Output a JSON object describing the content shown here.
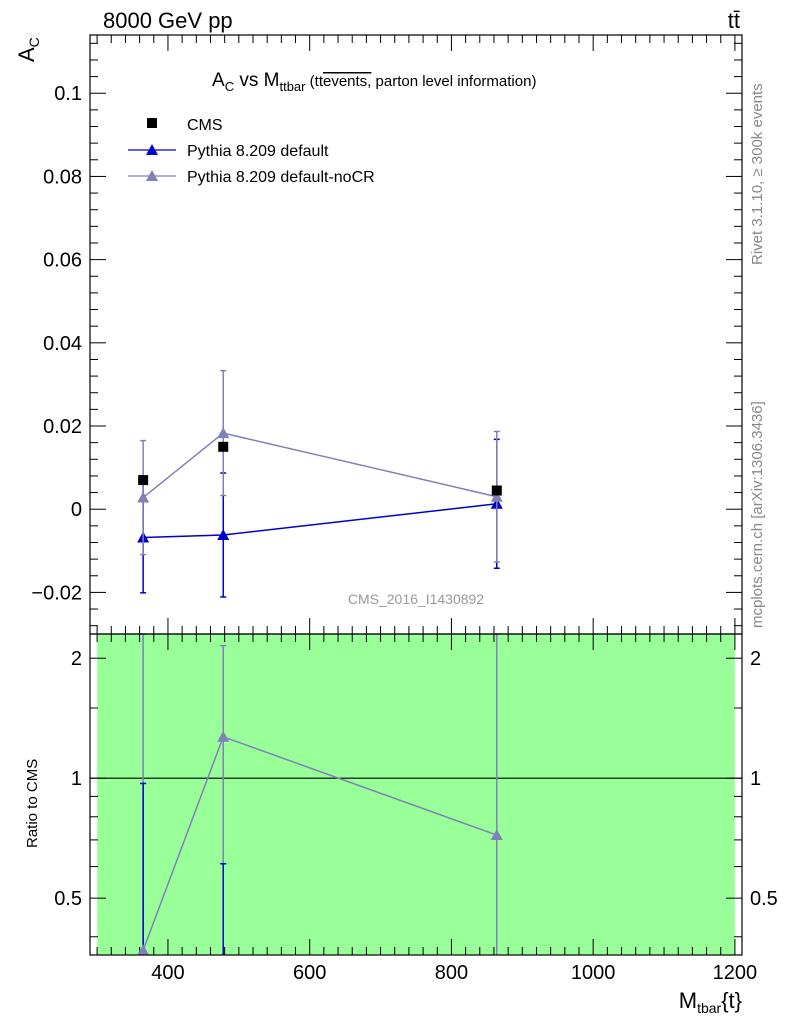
{
  "header": {
    "left_label": "8000 GeV pp",
    "right_label": "tt̄"
  },
  "side_text": {
    "rivet": "Rivet 3.1.10, ≥ 300k events",
    "url": "mcplots.cern.ch [arXiv:1306.3436]"
  },
  "watermark": "CMS_2016_I1430892",
  "title": {
    "main": "A",
    "main_sub": "C",
    "vs": " vs M",
    "vs_sub": "ttbar",
    "paren_open": " (tt",
    "overline": "events,",
    "paren_rest": " parton level information)"
  },
  "ylabel_main": {
    "main": "A",
    "sub": "C"
  },
  "ylabel_ratio": "Ratio to CMS",
  "xlabel": {
    "main": "M",
    "sub": "tbar",
    "tail": "{t}"
  },
  "colors": {
    "data": "#000000",
    "pythia_default": "#0000cc",
    "pythia_nocr": "#8080b8",
    "ratio_band": "#99ff99"
  },
  "chart_data": [
    {
      "type": "scatter",
      "panel": "main",
      "xlim": [
        290,
        1210
      ],
      "ylim": [
        -0.03,
        0.114
      ],
      "yticks": [
        -0.02,
        0,
        0.02,
        0.04,
        0.06,
        0.08,
        0.1
      ],
      "ytick_labels": [
        "−0.02",
        "0",
        "0.02",
        "0.04",
        "0.06",
        "0.08",
        "0.1"
      ],
      "legend_position": "top-left",
      "series": [
        {
          "name": "CMS",
          "marker": "square",
          "x": [
            365,
            478,
            864
          ],
          "y": [
            0.007,
            0.015,
            0.0045
          ]
        },
        {
          "name": "Pythia 8.209 default",
          "marker": "triangle",
          "x": [
            365,
            478,
            864
          ],
          "y": [
            -0.0068,
            -0.0062,
            0.0013
          ],
          "yerr": [
            0.0133,
            0.0149,
            0.0155
          ]
        },
        {
          "name": "Pythia 8.209 default-noCR",
          "marker": "triangle",
          "x": [
            365,
            478,
            864
          ],
          "y": [
            0.0028,
            0.0183,
            0.003
          ],
          "yerr": [
            0.0137,
            0.015,
            0.0157
          ]
        }
      ]
    },
    {
      "type": "line",
      "panel": "ratio",
      "xlim": [
        290,
        1210
      ],
      "ylim": [
        0.36,
        2.3
      ],
      "yscale": "log",
      "xticks": [
        400,
        600,
        800,
        1000,
        1200
      ],
      "yticks": [
        0.5,
        1,
        2
      ],
      "ytick_labels": [
        "0.5",
        "1",
        "2"
      ],
      "band": {
        "x": [
          300,
          1200
        ],
        "y": [
          0.36,
          2.3
        ]
      },
      "reference_line": 1,
      "series": [
        {
          "name": "Pythia 8.209 default-noCR",
          "x": [
            365,
            478,
            864
          ],
          "y": [
            0.37,
            1.27,
            0.72
          ],
          "ylow": [
            0.36,
            0.6,
            0.36
          ],
          "yhigh": [
            2.3,
            2.15,
            2.3
          ]
        }
      ],
      "extra_bars": [
        {
          "x": 365,
          "ylow": 0.36,
          "yhigh": 0.97
        },
        {
          "x": 478,
          "ylow": 0.36,
          "yhigh": 0.61
        }
      ]
    }
  ]
}
